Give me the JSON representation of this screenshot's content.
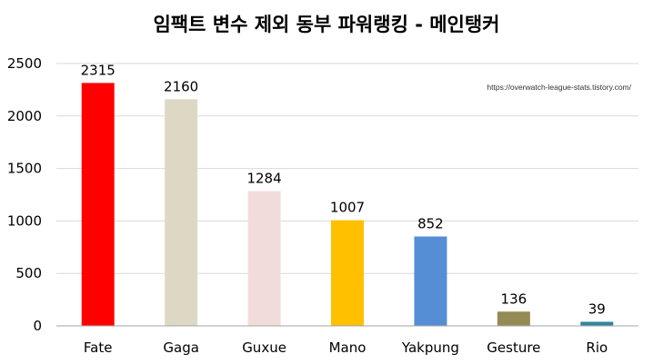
{
  "chart_data": {
    "type": "bar",
    "title": "임팩트 변수 제외 동부 파워랭킹 - 메인탱커",
    "annotation": "https://overwatch-league-stats.tistory.com/",
    "categories": [
      "Fate",
      "Gaga",
      "Guxue",
      "Mano",
      "Yakpung",
      "Gesture",
      "Rio"
    ],
    "values": [
      2315,
      2160,
      1284,
      1007,
      852,
      136,
      39
    ],
    "colors": [
      "#ff0000",
      "#ddd8c4",
      "#f2dcdb",
      "#ffc000",
      "#558ed5",
      "#948a54",
      "#31859c"
    ],
    "ylim": [
      0,
      2500
    ],
    "yticks": [
      0,
      500,
      1000,
      1500,
      2000,
      2500
    ],
    "grid": true,
    "legend": "none",
    "xlabel": "",
    "ylabel": ""
  }
}
